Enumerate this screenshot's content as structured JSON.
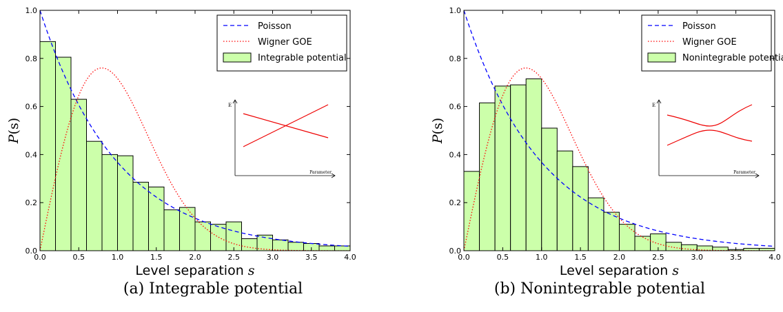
{
  "chart_data": [
    {
      "type": "bar",
      "caption": "(a) Integrable potential",
      "xlabel_main": "Level separation ",
      "xlabel_var": "s",
      "ylabel_main": "P",
      "ylabel_var": "(s)",
      "xlim": [
        0,
        4
      ],
      "ylim": [
        0,
        1
      ],
      "xticks": [
        "0.0",
        "0.5",
        "1.0",
        "1.5",
        "2.0",
        "2.5",
        "3.0",
        "3.5",
        "4.0"
      ],
      "yticks": [
        "0.0",
        "0.2",
        "0.4",
        "0.6",
        "0.8",
        "1.0"
      ],
      "bin_width": 0.2,
      "bin_start": 0.0,
      "histogram": [
        0.87,
        0.805,
        0.63,
        0.455,
        0.4,
        0.395,
        0.285,
        0.265,
        0.17,
        0.18,
        0.12,
        0.11,
        0.12,
        0.05,
        0.065,
        0.045,
        0.035,
        0.03,
        0.02,
        0.02
      ],
      "series": [
        {
          "name": "Poisson",
          "formula": "exp(-s)",
          "color": "#0000ff",
          "style": "dashed"
        },
        {
          "name": "Wigner GOE",
          "formula": "(pi/2) s exp(-pi s^2 / 4)",
          "color": "#ff0000",
          "style": "dotted"
        },
        {
          "name": "Integrable potential",
          "color": "#ccffaa",
          "style": "bars"
        }
      ],
      "legend": "top-right",
      "inset": {
        "ylabel": "E",
        "xlabel": "Parameter",
        "kind": "crossing"
      }
    },
    {
      "type": "bar",
      "caption": "(b) Nonintegrable potential",
      "xlabel_main": "Level separation ",
      "xlabel_var": "s",
      "ylabel_main": "P",
      "ylabel_var": "(s)",
      "xlim": [
        0,
        4
      ],
      "ylim": [
        0,
        1
      ],
      "xticks": [
        "0.0",
        "0.5",
        "1.0",
        "1.5",
        "2.0",
        "2.5",
        "3.0",
        "3.5",
        "4.0"
      ],
      "yticks": [
        "0.0",
        "0.2",
        "0.4",
        "0.6",
        "0.8",
        "1.0"
      ],
      "bin_width": 0.2,
      "bin_start": 0.0,
      "histogram": [
        0.33,
        0.615,
        0.685,
        0.69,
        0.715,
        0.51,
        0.415,
        0.35,
        0.22,
        0.16,
        0.11,
        0.06,
        0.07,
        0.035,
        0.025,
        0.02,
        0.015,
        0.005,
        0.01,
        0.01
      ],
      "series": [
        {
          "name": "Poisson",
          "formula": "exp(-s)",
          "color": "#0000ff",
          "style": "dashed"
        },
        {
          "name": "Wigner GOE",
          "formula": "(pi/2) s exp(-pi s^2 / 4)",
          "color": "#ff0000",
          "style": "dotted"
        },
        {
          "name": "Nonintegrable potential",
          "color": "#ccffaa",
          "style": "bars"
        }
      ],
      "legend": "top-right",
      "inset": {
        "ylabel": "E",
        "xlabel": "Parameter",
        "kind": "avoided-crossing"
      }
    }
  ]
}
